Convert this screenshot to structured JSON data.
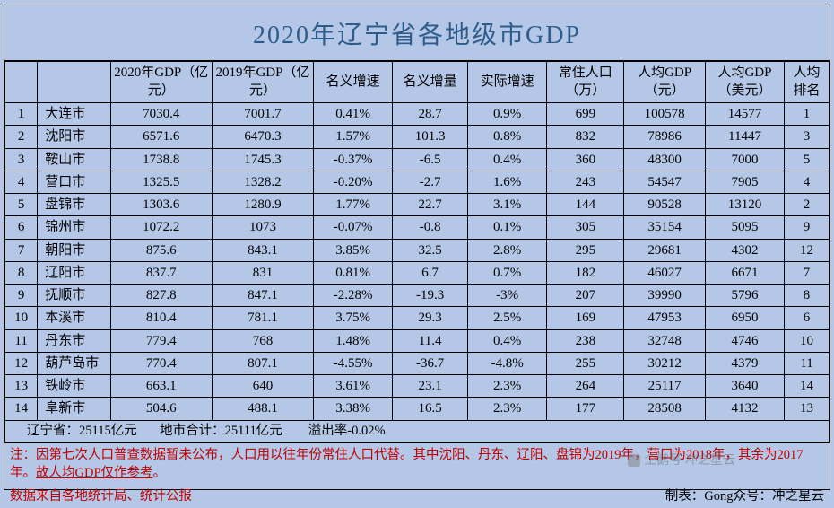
{
  "title": "2020年辽宁省各地级市GDP",
  "headers": {
    "rank": "",
    "city": "",
    "gdp2020": "2020年GDP（亿元）",
    "gdp2019": "2019年GDP（亿元）",
    "nom_growth": "名义增速",
    "nom_incr": "名义增量",
    "real_growth": "实际增速",
    "pop": "常住人口（万）",
    "pcgdp_cny": "人均GDP（元）",
    "pcgdp_usd": "人均GDP（美元）",
    "pc_rank": "人均排名"
  },
  "rows": [
    {
      "rank": "1",
      "city": "大连市",
      "gdp2020": "7030.4",
      "gdp2019": "7001.7",
      "nom_growth": "0.41%",
      "nom_incr": "28.7",
      "real_growth": "0.9%",
      "pop": "699",
      "pcgdp_cny": "100578",
      "pcgdp_usd": "14577",
      "pc_rank": "1"
    },
    {
      "rank": "2",
      "city": "沈阳市",
      "gdp2020": "6571.6",
      "gdp2019": "6470.3",
      "nom_growth": "1.57%",
      "nom_incr": "101.3",
      "real_growth": "0.8%",
      "pop": "832",
      "pcgdp_cny": "78986",
      "pcgdp_usd": "11447",
      "pc_rank": "3"
    },
    {
      "rank": "3",
      "city": "鞍山市",
      "gdp2020": "1738.8",
      "gdp2019": "1745.3",
      "nom_growth": "-0.37%",
      "nom_incr": "-6.5",
      "real_growth": "0.4%",
      "pop": "360",
      "pcgdp_cny": "48300",
      "pcgdp_usd": "7000",
      "pc_rank": "5"
    },
    {
      "rank": "4",
      "city": "营口市",
      "gdp2020": "1325.5",
      "gdp2019": "1328.2",
      "nom_growth": "-0.20%",
      "nom_incr": "-2.7",
      "real_growth": "1.6%",
      "pop": "243",
      "pcgdp_cny": "54547",
      "pcgdp_usd": "7905",
      "pc_rank": "4"
    },
    {
      "rank": "5",
      "city": "盘锦市",
      "gdp2020": "1303.6",
      "gdp2019": "1280.9",
      "nom_growth": "1.77%",
      "nom_incr": "22.7",
      "real_growth": "3.1%",
      "pop": "144",
      "pcgdp_cny": "90528",
      "pcgdp_usd": "13120",
      "pc_rank": "2"
    },
    {
      "rank": "6",
      "city": "锦州市",
      "gdp2020": "1072.2",
      "gdp2019": "1073",
      "nom_growth": "-0.07%",
      "nom_incr": "-0.8",
      "real_growth": "0.1%",
      "pop": "305",
      "pcgdp_cny": "35154",
      "pcgdp_usd": "5095",
      "pc_rank": "9"
    },
    {
      "rank": "7",
      "city": "朝阳市",
      "gdp2020": "875.6",
      "gdp2019": "843.1",
      "nom_growth": "3.85%",
      "nom_incr": "32.5",
      "real_growth": "2.8%",
      "pop": "295",
      "pcgdp_cny": "29681",
      "pcgdp_usd": "4302",
      "pc_rank": "12"
    },
    {
      "rank": "8",
      "city": "辽阳市",
      "gdp2020": "837.7",
      "gdp2019": "831",
      "nom_growth": "0.81%",
      "nom_incr": "6.7",
      "real_growth": "0.7%",
      "pop": "182",
      "pcgdp_cny": "46027",
      "pcgdp_usd": "6671",
      "pc_rank": "7"
    },
    {
      "rank": "9",
      "city": "抚顺市",
      "gdp2020": "827.8",
      "gdp2019": "847.1",
      "nom_growth": "-2.28%",
      "nom_incr": "-19.3",
      "real_growth": "-3%",
      "pop": "207",
      "pcgdp_cny": "39990",
      "pcgdp_usd": "5796",
      "pc_rank": "8"
    },
    {
      "rank": "10",
      "city": "本溪市",
      "gdp2020": "810.4",
      "gdp2019": "781.1",
      "nom_growth": "3.75%",
      "nom_incr": "29.3",
      "real_growth": "2.5%",
      "pop": "169",
      "pcgdp_cny": "47953",
      "pcgdp_usd": "6950",
      "pc_rank": "6"
    },
    {
      "rank": "11",
      "city": "丹东市",
      "gdp2020": "779.4",
      "gdp2019": "768",
      "nom_growth": "1.48%",
      "nom_incr": "11.4",
      "real_growth": "0.4%",
      "pop": "238",
      "pcgdp_cny": "32748",
      "pcgdp_usd": "4746",
      "pc_rank": "10"
    },
    {
      "rank": "12",
      "city": "葫芦岛市",
      "gdp2020": "770.4",
      "gdp2019": "807.1",
      "nom_growth": "-4.55%",
      "nom_incr": "-36.7",
      "real_growth": "-4.8%",
      "pop": "255",
      "pcgdp_cny": "30212",
      "pcgdp_usd": "4379",
      "pc_rank": "11"
    },
    {
      "rank": "13",
      "city": "铁岭市",
      "gdp2020": "663.1",
      "gdp2019": "640",
      "nom_growth": "3.61%",
      "nom_incr": "23.1",
      "real_growth": "2.3%",
      "pop": "264",
      "pcgdp_cny": "25117",
      "pcgdp_usd": "3640",
      "pc_rank": "14"
    },
    {
      "rank": "14",
      "city": "阜新市",
      "gdp2020": "504.6",
      "gdp2019": "488.1",
      "nom_growth": "3.38%",
      "nom_incr": "16.5",
      "real_growth": "2.3%",
      "pop": "177",
      "pcgdp_cny": "28508",
      "pcgdp_usd": "4132",
      "pc_rank": "13"
    }
  ],
  "summary": {
    "province": "辽宁省：25115亿元",
    "cities_total": "地市合计：25111亿元",
    "overflow": "溢出率-0.02%"
  },
  "notes": {
    "line1_prefix": "注：因第七次人口普查数据暂未公布，人口用以往年份常住人口代替。其中沈阳、丹东、辽阳、盘锦为2019年，营口为2018年，其余为2017年。",
    "line1_underline": "故人均GDP仅作参考",
    "line1_suffix": "。"
  },
  "source": {
    "left": "数据来自各地统计局、统计公报",
    "right": "制表：Gong众号：冲之星云"
  },
  "watermark": "企鹅号 冲之星云",
  "colors": {
    "background": "#b4c7e7",
    "title_color": "#2e5c8a",
    "border_color": "#000000",
    "note_color": "#c00000",
    "text_color": "#000000"
  },
  "fonts": {
    "title_size": 28,
    "body_size": 15,
    "title_family": "SimSun"
  }
}
